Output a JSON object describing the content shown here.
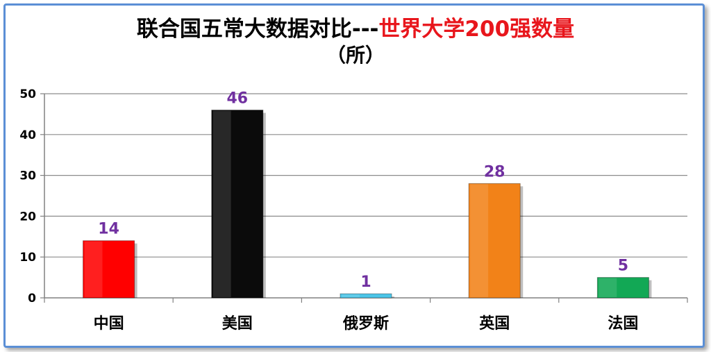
{
  "chart_data": {
    "type": "bar",
    "title_part1": "联合国五常大数据对比---",
    "title_part2": "世界大学200强数量",
    "subtitle": "（所）",
    "categories": [
      "中国",
      "美国",
      "俄罗斯",
      "英国",
      "法国"
    ],
    "values": [
      14,
      46,
      1,
      28,
      5
    ],
    "colors": [
      "#ff0000",
      "#0b0b0b",
      "#4bc5e8",
      "#f28218",
      "#12a855"
    ],
    "yticks": [
      0,
      10,
      20,
      30,
      40,
      50
    ],
    "ylim": [
      0,
      50
    ],
    "grid": true,
    "value_label_color": "#7030a0"
  }
}
